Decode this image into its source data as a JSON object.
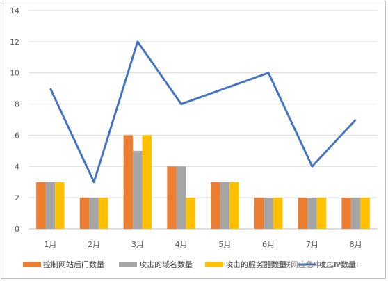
{
  "chart_data": {
    "type": "bar",
    "categories": [
      "1月",
      "2月",
      "3月",
      "4月",
      "5月",
      "6月",
      "7月",
      "8月"
    ],
    "series": [
      {
        "name": "控制网站后门数量",
        "type": "bar",
        "color": "#ED7D31",
        "values": [
          3,
          2,
          6,
          4,
          3,
          2,
          2,
          2
        ]
      },
      {
        "name": "攻击的域名数量",
        "type": "bar",
        "color": "#A5A5A5",
        "values": [
          3,
          2,
          5,
          4,
          3,
          2,
          2,
          2
        ]
      },
      {
        "name": "攻击的服务器数量",
        "type": "bar",
        "color": "#FFC000",
        "values": [
          3,
          2,
          6,
          2,
          3,
          2,
          2,
          2
        ]
      },
      {
        "name": "攻击IP数量",
        "type": "line",
        "color": "#4472C4",
        "values": [
          9,
          3,
          12,
          8,
          9,
          10,
          4,
          7
        ]
      }
    ],
    "ylim": [
      0,
      14
    ],
    "yticks": [
      0,
      2,
      4,
      6,
      8,
      10,
      12,
      14
    ],
    "grid": true,
    "legend_position": "bottom"
  },
  "watermark": "国家互联网应急中心CNCERT"
}
